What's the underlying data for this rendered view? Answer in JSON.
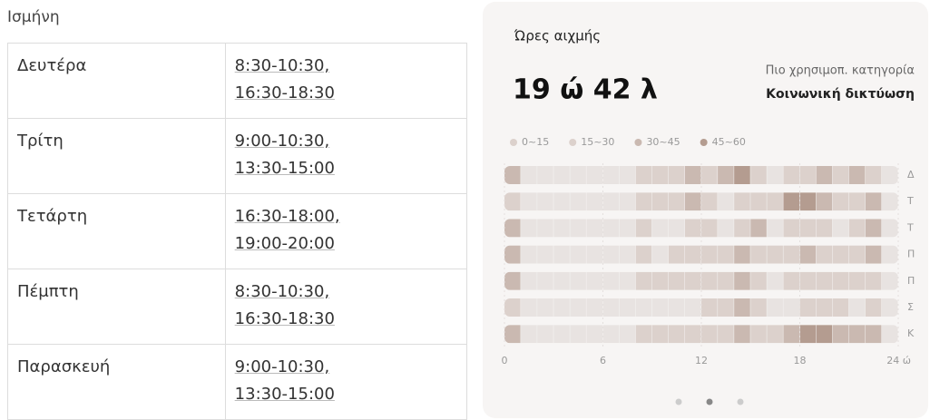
{
  "header": {
    "title": "Ισμήνη"
  },
  "table": {
    "rows": [
      [
        "Δευτέρα",
        [
          "8:30-10:30,",
          "16:30-18:30"
        ]
      ],
      [
        "Τρίτη",
        [
          "9:00-10:30,",
          "13:30-15:00"
        ]
      ],
      [
        "Τετάρτη",
        [
          "16:30-18:00,",
          "19:00-20:00"
        ]
      ],
      [
        "Πέμπτη",
        [
          "8:30-10:30,",
          "16:30-18:30"
        ]
      ],
      [
        "Παρασκευή",
        [
          "9:00-10:30,",
          "13:30-15:00"
        ]
      ]
    ]
  },
  "card": {
    "title": "Ώρες αιχμής",
    "total": "19 ώ 42 λ",
    "top_category_label": "Πιο χρησιμοπ. κατηγορία",
    "top_category": "Κοινωνική δικτύωση",
    "chart_data": {
      "type": "heatmap",
      "legend": [
        {
          "label": "0~15",
          "color": "#e8e3e1"
        },
        {
          "label": "15~30",
          "color": "#dcd1cc"
        },
        {
          "label": "30~45",
          "color": "#cab9b1"
        },
        {
          "label": "45~60",
          "color": "#b49c90"
        }
      ],
      "days": [
        "Δ",
        "Τ",
        "Τ",
        "Π",
        "Π",
        "Σ",
        "Κ"
      ],
      "levels": [
        [
          2,
          0,
          0,
          0,
          0,
          0,
          0,
          0,
          1,
          1,
          1,
          2,
          1,
          2,
          3,
          1,
          0,
          1,
          1,
          2,
          1,
          2,
          1,
          0
        ],
        [
          1,
          0,
          0,
          0,
          0,
          0,
          0,
          0,
          1,
          1,
          1,
          2,
          1,
          0,
          1,
          1,
          1,
          3,
          3,
          2,
          1,
          1,
          2,
          0
        ],
        [
          2,
          0,
          0,
          0,
          0,
          0,
          0,
          0,
          1,
          0,
          0,
          1,
          1,
          0,
          1,
          2,
          0,
          1,
          1,
          1,
          0,
          1,
          2,
          0
        ],
        [
          2,
          0,
          0,
          0,
          0,
          0,
          0,
          0,
          1,
          0,
          1,
          1,
          1,
          1,
          2,
          1,
          1,
          1,
          2,
          1,
          1,
          1,
          2,
          0
        ],
        [
          2,
          0,
          0,
          0,
          0,
          0,
          0,
          0,
          1,
          1,
          1,
          1,
          1,
          1,
          2,
          1,
          0,
          1,
          1,
          1,
          1,
          1,
          1,
          0
        ],
        [
          1,
          0,
          0,
          0,
          0,
          0,
          0,
          0,
          0,
          0,
          0,
          0,
          1,
          1,
          2,
          1,
          0,
          0,
          1,
          1,
          1,
          0,
          1,
          0
        ],
        [
          2,
          0,
          0,
          0,
          0,
          0,
          0,
          0,
          1,
          1,
          1,
          1,
          1,
          1,
          2,
          1,
          1,
          2,
          3,
          3,
          2,
          2,
          2,
          0
        ]
      ],
      "xlim": [
        0,
        24
      ],
      "xticks": [
        0,
        6,
        12,
        18,
        {
          "value": 24,
          "label": "24 ώ"
        }
      ]
    }
  }
}
